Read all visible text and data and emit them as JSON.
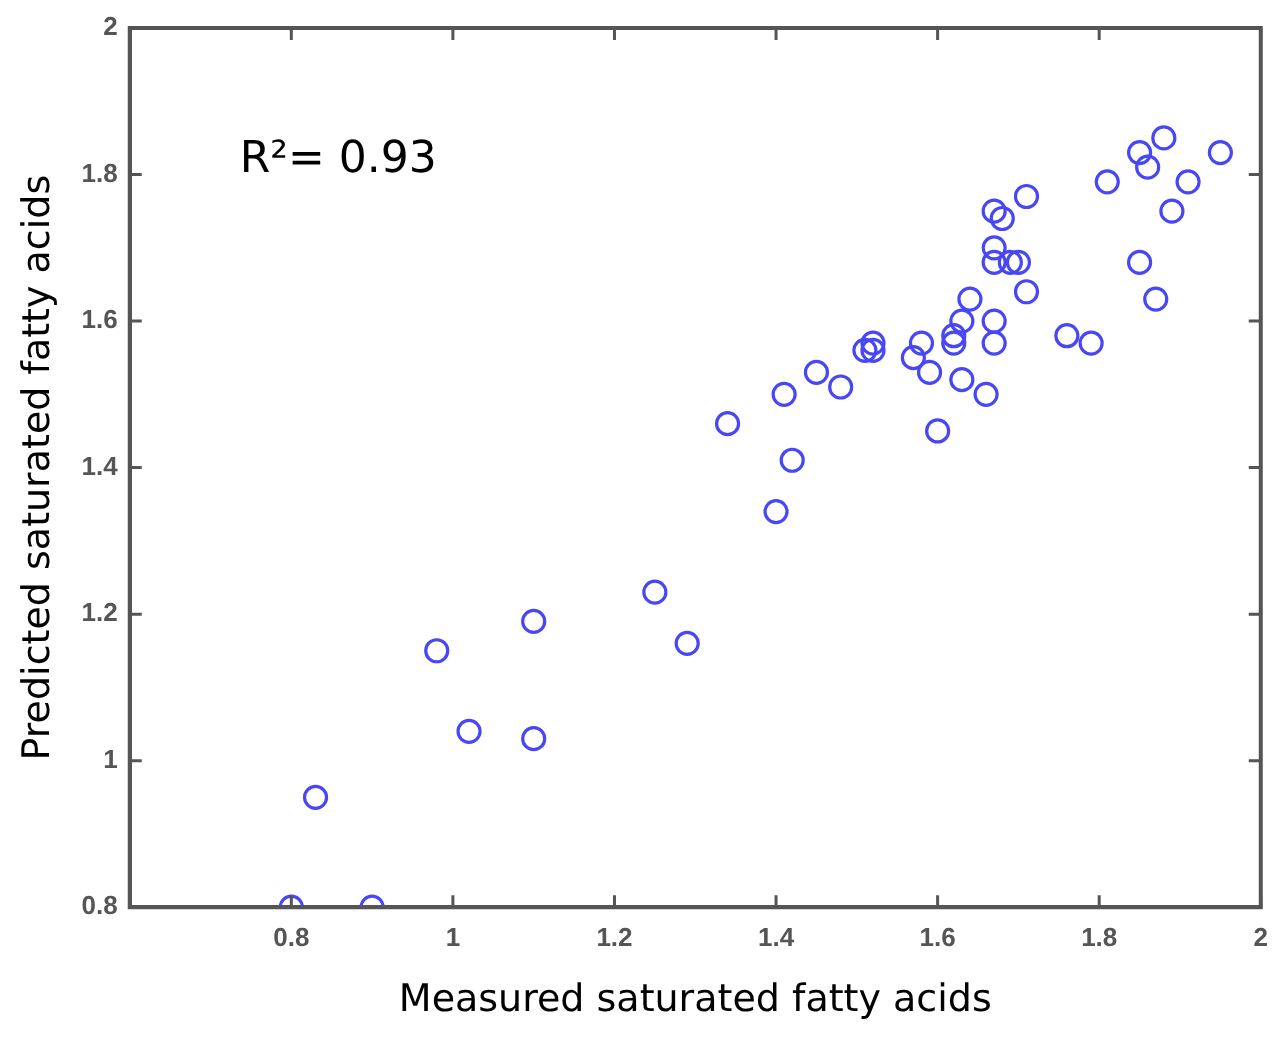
{
  "chart_data": {
    "type": "scatter",
    "xlabel": "Measured saturated fatty acids",
    "ylabel": "Predicted saturated fatty acids",
    "annotations": [
      "R²= 0.93"
    ],
    "xlim": [
      0.6,
      2
    ],
    "ylim": [
      0.8,
      2
    ],
    "xticks": [
      0.8,
      1,
      1.2,
      1.4,
      1.6,
      1.8,
      2
    ],
    "yticks": [
      0.8,
      1,
      1.2,
      1.4,
      1.6,
      1.8,
      2
    ],
    "grid": false,
    "marker": "circle",
    "legend": false,
    "series": [
      {
        "color": "#4747f5",
        "x": [
          0.8,
          0.83,
          0.9,
          0.98,
          1.02,
          1.1,
          1.1,
          1.25,
          1.29,
          1.34,
          1.4,
          1.41,
          1.42,
          1.45,
          1.48,
          1.51,
          1.52,
          1.52,
          1.57,
          1.58,
          1.59,
          1.6,
          1.62,
          1.62,
          1.63,
          1.64,
          1.63,
          1.66,
          1.67,
          1.67,
          1.67,
          1.67,
          1.69,
          1.7,
          1.67,
          1.68,
          1.71,
          1.71,
          1.76,
          1.79,
          1.81,
          1.85,
          1.87,
          1.85,
          1.86,
          1.88,
          1.89,
          1.91,
          1.95
        ],
        "values": [
          0.8,
          0.95,
          0.8,
          1.15,
          1.04,
          1.19,
          1.03,
          1.23,
          1.16,
          1.46,
          1.34,
          1.5,
          1.41,
          1.53,
          1.51,
          1.56,
          1.57,
          1.56,
          1.55,
          1.57,
          1.53,
          1.45,
          1.57,
          1.58,
          1.6,
          1.63,
          1.52,
          1.5,
          1.57,
          1.6,
          1.7,
          1.68,
          1.68,
          1.68,
          1.75,
          1.74,
          1.77,
          1.64,
          1.58,
          1.57,
          1.79,
          1.68,
          1.63,
          1.83,
          1.81,
          1.85,
          1.75,
          1.79,
          1.83
        ]
      }
    ]
  }
}
